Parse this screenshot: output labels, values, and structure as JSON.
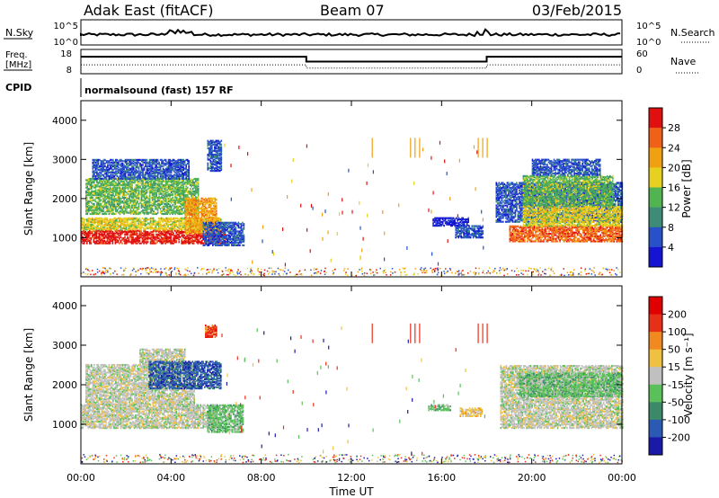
{
  "header": {
    "station": "Adak East (fitACF)",
    "beam": "Beam 07",
    "date": "03/Feb/2015"
  },
  "strips": {
    "nsky_label": "N.Sky",
    "nsearch_label": "N.Search",
    "nsky_ticks": [
      "10^5",
      "10^0"
    ],
    "nsearch_ticks": [
      "10^5",
      "10^0"
    ],
    "freq_label_1": "Freq.",
    "freq_label_2": "[MHz]",
    "freq_ticks": [
      "18",
      "8"
    ],
    "nave_label": "Nave",
    "nave_ticks": [
      "60",
      "0"
    ],
    "cpid_label": "CPID",
    "cpid_text": "normalsound (fast) 157 RF"
  },
  "chart_data": [
    {
      "type": "line",
      "name": "freq-strip",
      "xlim": [
        0,
        24
      ],
      "ylim_left": [
        8,
        18
      ],
      "ylim_right": [
        0,
        60
      ],
      "series": [
        {
          "name": "Freq.",
          "x": [
            0,
            10,
            10,
            18,
            18,
            24
          ],
          "y": [
            15,
            15,
            13,
            13,
            15,
            15
          ]
        },
        {
          "name": "Nave",
          "x": [
            0,
            10,
            10,
            18,
            18,
            24
          ],
          "y": [
            22,
            22,
            14,
            14,
            22,
            22
          ]
        }
      ]
    },
    {
      "type": "heatmap",
      "name": "power",
      "xlabel": "",
      "ylabel": "Slant Range [km]",
      "xlim": [
        0,
        24
      ],
      "ylim": [
        0,
        4500
      ],
      "yticks": [
        1000,
        2000,
        3000,
        4000
      ],
      "colorbar": {
        "label": "Power [dB]",
        "ticks": [
          4,
          8,
          12,
          16,
          20,
          24,
          28
        ],
        "range": [
          0,
          32
        ],
        "colors": [
          "#1414d2",
          "#2850c8",
          "#3c8c78",
          "#50b450",
          "#e8d020",
          "#f0a010",
          "#f06018",
          "#e01010"
        ]
      },
      "regions": [
        {
          "t0": 0.0,
          "t1": 6.4,
          "r0": 850,
          "r1": 1200,
          "level": 7
        },
        {
          "t0": 0.0,
          "t1": 6.2,
          "r0": 1200,
          "r1": 1500,
          "level": 4
        },
        {
          "t0": 0.2,
          "t1": 5.2,
          "r0": 1600,
          "r1": 2500,
          "level": 3
        },
        {
          "t0": 0.5,
          "t1": 4.8,
          "r0": 2500,
          "r1": 3000,
          "level": 1
        },
        {
          "t0": 4.6,
          "t1": 6.0,
          "r0": 1100,
          "r1": 2000,
          "level": 5
        },
        {
          "t0": 5.4,
          "t1": 7.2,
          "r0": 800,
          "r1": 1400,
          "level": 1
        },
        {
          "t0": 5.6,
          "t1": 6.2,
          "r0": 2700,
          "r1": 3500,
          "level": 1
        },
        {
          "t0": 15.6,
          "t1": 17.2,
          "r0": 1300,
          "r1": 1500,
          "level": 0
        },
        {
          "t0": 16.6,
          "t1": 17.8,
          "r0": 1000,
          "r1": 1300,
          "level": 1
        },
        {
          "t0": 18.4,
          "t1": 24.0,
          "r0": 1400,
          "r1": 2400,
          "level": 1
        },
        {
          "t0": 19.0,
          "t1": 24.0,
          "r0": 900,
          "r1": 1300,
          "level": 6
        },
        {
          "t0": 19.6,
          "t1": 24.0,
          "r0": 1300,
          "r1": 1800,
          "level": 4
        },
        {
          "t0": 19.6,
          "t1": 23.6,
          "r0": 1800,
          "r1": 2600,
          "level": 3
        },
        {
          "t0": 20.0,
          "t1": 23.0,
          "r0": 2600,
          "r1": 3000,
          "level": 1
        }
      ]
    },
    {
      "type": "heatmap",
      "name": "velocity",
      "xlabel": "Time UT",
      "ylabel": "Slant Range [km]",
      "xlim": [
        0,
        24
      ],
      "xticks": [
        "00:00",
        "04:00",
        "08:00",
        "12:00",
        "16:00",
        "20:00",
        "00:00"
      ],
      "ylim": [
        0,
        4500
      ],
      "yticks": [
        1000,
        2000,
        3000,
        4000
      ],
      "colorbar": {
        "label": "Velocity [m s⁻¹]",
        "ticks": [
          200,
          100,
          50,
          15,
          -15,
          -50,
          -100,
          -200
        ],
        "colors": [
          "#1a1aa8",
          "#2a5ab4",
          "#3a8a6a",
          "#5ac05a",
          "#c0c0c0",
          "#f0c040",
          "#f08a20",
          "#e83018",
          "#e00000"
        ]
      },
      "regions": [
        {
          "t0": 0.0,
          "t1": 6.0,
          "r0": 900,
          "r1": 1500,
          "level": 4
        },
        {
          "t0": 0.2,
          "t1": 5.0,
          "r0": 1500,
          "r1": 2500,
          "level": 4
        },
        {
          "t0": 2.6,
          "t1": 4.6,
          "r0": 2500,
          "r1": 2900,
          "level": 4
        },
        {
          "t0": 3.0,
          "t1": 6.2,
          "r0": 1900,
          "r1": 2600,
          "level": 1
        },
        {
          "t0": 5.6,
          "t1": 7.2,
          "r0": 800,
          "r1": 1500,
          "level": 3
        },
        {
          "t0": 5.5,
          "t1": 6.0,
          "r0": 3200,
          "r1": 3500,
          "level": 7
        },
        {
          "t0": 15.4,
          "t1": 16.4,
          "r0": 1350,
          "r1": 1500,
          "level": 3
        },
        {
          "t0": 16.8,
          "t1": 17.8,
          "r0": 1200,
          "r1": 1400,
          "level": 5
        },
        {
          "t0": 18.6,
          "t1": 24.0,
          "r0": 900,
          "r1": 2500,
          "level": 4
        },
        {
          "t0": 19.4,
          "t1": 24.0,
          "r0": 1700,
          "r1": 2300,
          "level": 3
        }
      ]
    }
  ]
}
